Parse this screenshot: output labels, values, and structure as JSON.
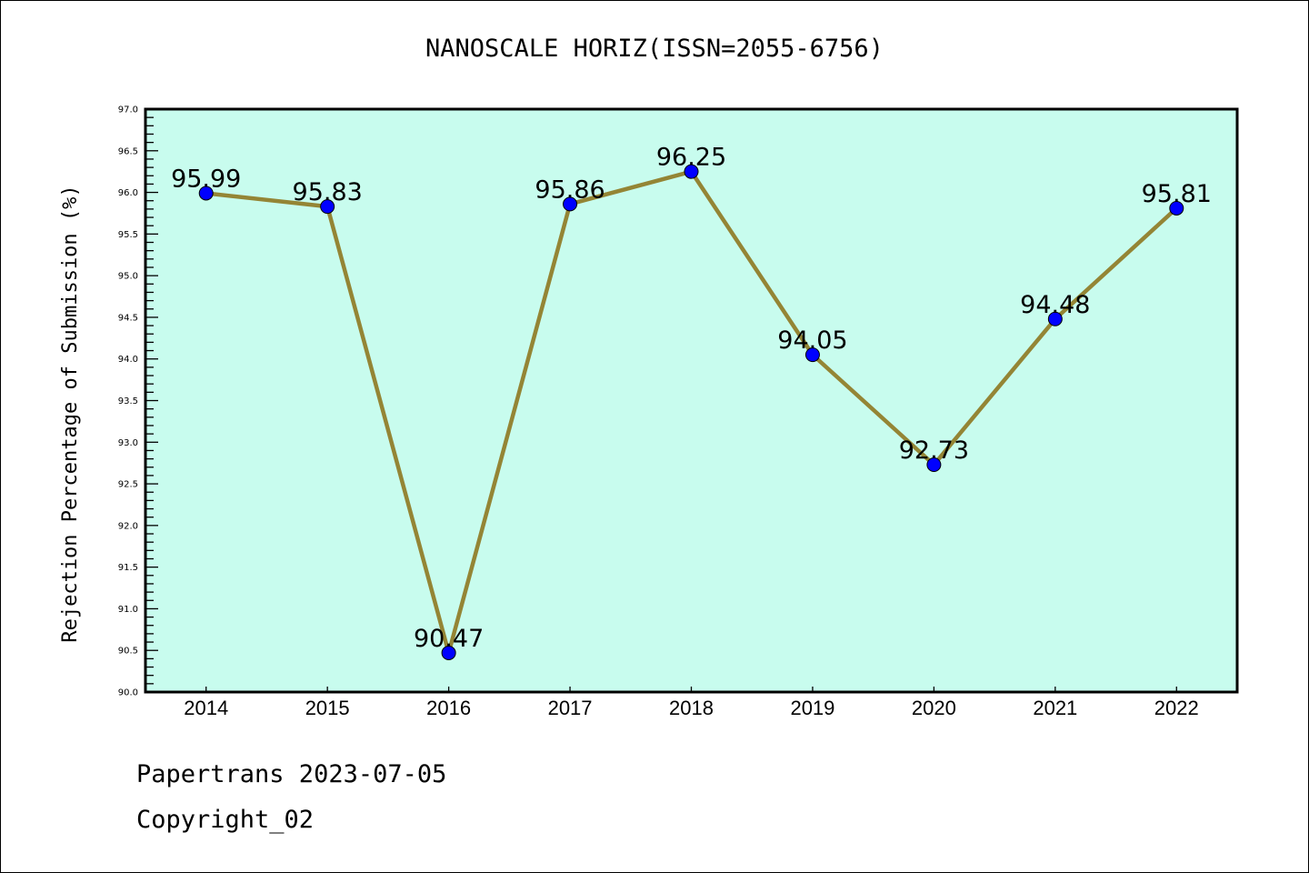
{
  "chart_data": {
    "type": "line",
    "title": "NANOSCALE HORIZ(ISSN=2055-6756)",
    "xlabel": "",
    "ylabel": "Rejection Percentage of Submission (%)",
    "x": [
      2014,
      2015,
      2016,
      2017,
      2018,
      2019,
      2020,
      2021,
      2022
    ],
    "categories": [
      "2014",
      "2015",
      "2016",
      "2017",
      "2018",
      "2019",
      "2020",
      "2021",
      "2022"
    ],
    "series": [
      {
        "name": "Rejection Percentage",
        "values": [
          95.99,
          95.83,
          90.47,
          95.86,
          96.25,
          94.05,
          92.73,
          94.48,
          95.81
        ]
      }
    ],
    "data_labels": [
      "95.99",
      "95.83",
      "90.47",
      "95.86",
      "96.25",
      "94.05",
      "92.73",
      "94.48",
      "95.81"
    ],
    "xlim": [
      2013.5,
      2022.5
    ],
    "ylim": [
      90.0,
      97.0
    ],
    "yticks": [
      "90.0",
      "90.5",
      "91.0",
      "91.5",
      "92.0",
      "92.5",
      "93.0",
      "93.5",
      "94.0",
      "94.5",
      "95.0",
      "95.5",
      "96.0",
      "96.5",
      "97.0"
    ],
    "grid": false,
    "legend": "none",
    "colors": {
      "background": "#c8fcee",
      "line": "#948535",
      "marker": "#0000ff"
    }
  },
  "footer": {
    "line1": "Papertrans 2023-07-05",
    "line2": "Copyright_02"
  }
}
